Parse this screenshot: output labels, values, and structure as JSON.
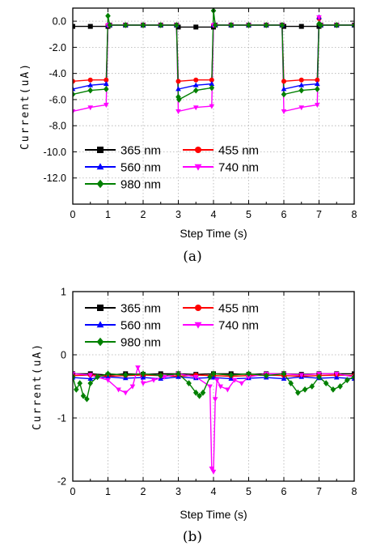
{
  "colors": {
    "365 nm": "#000000",
    "455 nm": "#ff0000",
    "560 nm": "#0000ff",
    "740 nm": "#ff00ff",
    "980 nm": "#008000"
  },
  "chart_data": [
    {
      "type": "line",
      "caption": "(a)",
      "xlabel": "Step Time (s)",
      "ylabel": "Current(uA)",
      "xlim": [
        0,
        8
      ],
      "ylim": [
        -14,
        1
      ],
      "xticks": [
        "0",
        "1",
        "2",
        "3",
        "4",
        "5",
        "6",
        "7",
        "8"
      ],
      "yticks": [
        "0.0",
        "-2.0",
        "-4.0",
        "-6.0",
        "-8.0",
        "-10.0",
        "-12.0"
      ],
      "grid": true,
      "legend_position": "bottom-left",
      "series": [
        {
          "name": "365 nm",
          "marker": "square",
          "x": [
            0,
            0.5,
            1.0,
            1.05,
            1.5,
            2,
            2.5,
            2.95,
            3.0,
            3.5,
            4.0,
            4.05,
            4.5,
            5,
            5.5,
            5.95,
            6.0,
            6.5,
            7.0,
            7.05,
            7.5,
            8
          ],
          "y": [
            -0.4,
            -0.4,
            -0.4,
            -0.3,
            -0.3,
            -0.3,
            -0.3,
            -0.3,
            -0.45,
            -0.45,
            -0.45,
            -0.3,
            -0.3,
            -0.3,
            -0.3,
            -0.3,
            -0.4,
            -0.4,
            -0.4,
            -0.3,
            -0.3,
            -0.3
          ]
        },
        {
          "name": "455 nm",
          "marker": "circle",
          "x": [
            0,
            0.5,
            0.95,
            1.0,
            1.05,
            1.5,
            2,
            2.5,
            2.95,
            3.0,
            3.5,
            3.95,
            4.0,
            4.05,
            4.5,
            5,
            5.5,
            5.95,
            6.0,
            6.5,
            6.95,
            7.0,
            7.05,
            7.5,
            8
          ],
          "y": [
            -4.6,
            -4.5,
            -4.5,
            -0.3,
            -0.3,
            -0.3,
            -0.3,
            -0.3,
            -0.3,
            -4.6,
            -4.5,
            -4.5,
            -0.3,
            -0.3,
            -0.3,
            -0.3,
            -0.3,
            -0.3,
            -4.6,
            -4.5,
            -4.5,
            0.2,
            -0.3,
            -0.3,
            -0.3
          ]
        },
        {
          "name": "560 nm",
          "marker": "triangle-up",
          "x": [
            0,
            0.5,
            0.95,
            1.0,
            1.05,
            1.5,
            2,
            2.5,
            2.95,
            3.0,
            3.5,
            3.95,
            4.0,
            4.05,
            4.5,
            5,
            5.5,
            5.95,
            6.0,
            6.5,
            6.95,
            7.0,
            7.05,
            7.5,
            8
          ],
          "y": [
            -5.2,
            -4.9,
            -4.8,
            -0.3,
            -0.3,
            -0.3,
            -0.3,
            -0.3,
            -0.3,
            -5.2,
            -4.9,
            -4.8,
            -0.3,
            -0.3,
            -0.3,
            -0.3,
            -0.3,
            -0.3,
            -5.2,
            -4.9,
            -4.8,
            0.3,
            -0.3,
            -0.3,
            -0.3
          ]
        },
        {
          "name": "740 nm",
          "marker": "triangle-down",
          "x": [
            0,
            0.5,
            0.95,
            1.0,
            1.05,
            1.5,
            2,
            2.5,
            2.95,
            3.0,
            3.5,
            3.95,
            4.0,
            4.05,
            4.5,
            5,
            5.5,
            5.95,
            6.0,
            6.5,
            6.95,
            7.0,
            7.05,
            7.5,
            8
          ],
          "y": [
            -6.9,
            -6.6,
            -6.4,
            -0.3,
            -0.3,
            -0.3,
            -0.3,
            -0.3,
            -0.3,
            -6.9,
            -6.6,
            -6.5,
            -0.3,
            -0.3,
            -0.3,
            -0.3,
            -0.3,
            -0.3,
            -6.9,
            -6.6,
            -6.4,
            0.3,
            -0.3,
            -0.3,
            -0.3
          ]
        },
        {
          "name": "980 nm",
          "marker": "diamond",
          "x": [
            0,
            0.5,
            0.95,
            1.0,
            1.05,
            1.5,
            2,
            2.5,
            2.95,
            3.0,
            3.02,
            3.5,
            3.95,
            4.0,
            4.05,
            4.5,
            5,
            5.5,
            5.95,
            6.0,
            6.5,
            6.95,
            7.0,
            7.05,
            7.5,
            8
          ],
          "y": [
            -5.6,
            -5.3,
            -5.2,
            0.4,
            -0.3,
            -0.3,
            -0.3,
            -0.3,
            -0.3,
            -5.8,
            -6.0,
            -5.3,
            -5.1,
            0.8,
            -0.3,
            -0.3,
            -0.3,
            -0.3,
            -0.3,
            -5.6,
            -5.3,
            -5.2,
            -0.2,
            -0.3,
            -0.3,
            -0.3
          ]
        }
      ]
    },
    {
      "type": "line",
      "caption": "(b)",
      "xlabel": "Step Time (s)",
      "ylabel": "Current(uA)",
      "xlim": [
        0,
        8
      ],
      "ylim": [
        -2,
        1
      ],
      "xticks": [
        "0",
        "1",
        "2",
        "3",
        "4",
        "5",
        "6",
        "7",
        "8"
      ],
      "yticks": [
        "1",
        "0",
        "-1",
        "-2"
      ],
      "grid": true,
      "legend_position": "top-left",
      "series": [
        {
          "name": "365 nm",
          "marker": "square",
          "x": [
            0,
            0.5,
            1,
            1.5,
            2,
            2.5,
            3,
            3.5,
            4,
            4.5,
            5,
            5.5,
            6,
            6.5,
            7,
            7.5,
            8
          ],
          "y": [
            -0.3,
            -0.3,
            -0.32,
            -0.3,
            -0.31,
            -0.3,
            -0.3,
            -0.31,
            -0.3,
            -0.3,
            -0.31,
            -0.3,
            -0.3,
            -0.31,
            -0.3,
            -0.3,
            -0.3
          ]
        },
        {
          "name": "455 nm",
          "marker": "circle",
          "x": [
            0,
            0.5,
            1,
            1.5,
            2,
            2.5,
            3,
            3.5,
            4,
            4.5,
            5,
            5.5,
            6,
            6.5,
            7,
            7.5,
            8
          ],
          "y": [
            -0.33,
            -0.32,
            -0.34,
            -0.33,
            -0.32,
            -0.33,
            -0.34,
            -0.32,
            -0.33,
            -0.34,
            -0.33,
            -0.32,
            -0.33,
            -0.34,
            -0.33,
            -0.32,
            -0.33
          ]
        },
        {
          "name": "560 nm",
          "marker": "triangle-up",
          "x": [
            0,
            0.5,
            1,
            1.5,
            2,
            2.5,
            3,
            3.5,
            4,
            4.5,
            5,
            5.5,
            6,
            6.5,
            7,
            7.5,
            8
          ],
          "y": [
            -0.36,
            -0.38,
            -0.35,
            -0.37,
            -0.36,
            -0.38,
            -0.35,
            -0.37,
            -0.36,
            -0.38,
            -0.37,
            -0.36,
            -0.38,
            -0.35,
            -0.37,
            -0.36,
            -0.38
          ]
        },
        {
          "name": "740 nm",
          "marker": "triangle-down",
          "x": [
            0,
            0.5,
            1,
            1.3,
            1.5,
            1.7,
            1.85,
            2,
            2.3,
            2.6,
            3,
            3.5,
            3.9,
            3.95,
            4.0,
            4.05,
            4.1,
            4.2,
            4.4,
            4.6,
            4.8,
            5,
            5.5,
            6,
            6.5,
            7,
            7.5,
            8
          ],
          "y": [
            -0.3,
            -0.32,
            -0.4,
            -0.55,
            -0.6,
            -0.5,
            -0.2,
            -0.45,
            -0.4,
            -0.35,
            -0.3,
            -0.35,
            -0.5,
            -1.8,
            -1.85,
            -0.7,
            -0.4,
            -0.5,
            -0.55,
            -0.4,
            -0.45,
            -0.35,
            -0.3,
            -0.3,
            -0.32,
            -0.3,
            -0.3,
            -0.35
          ]
        },
        {
          "name": "980 nm",
          "marker": "diamond",
          "x": [
            0,
            0.1,
            0.2,
            0.3,
            0.4,
            0.5,
            0.7,
            1,
            1.5,
            2,
            2.5,
            3,
            3.3,
            3.5,
            3.6,
            3.7,
            3.9,
            4,
            4.5,
            5,
            5.5,
            6,
            6.2,
            6.4,
            6.6,
            6.8,
            7,
            7.2,
            7.4,
            7.6,
            7.8,
            8
          ],
          "y": [
            -0.35,
            -0.55,
            -0.45,
            -0.65,
            -0.7,
            -0.45,
            -0.35,
            -0.3,
            -0.32,
            -0.3,
            -0.33,
            -0.3,
            -0.45,
            -0.6,
            -0.65,
            -0.6,
            -0.35,
            -0.3,
            -0.32,
            -0.3,
            -0.33,
            -0.3,
            -0.45,
            -0.6,
            -0.55,
            -0.5,
            -0.35,
            -0.45,
            -0.55,
            -0.5,
            -0.4,
            -0.35
          ]
        }
      ]
    }
  ]
}
